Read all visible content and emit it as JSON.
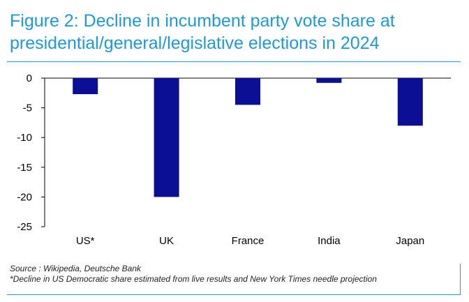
{
  "title": {
    "line1": "Figure 2: Decline in incumbent party vote share at",
    "line2": "presidential/general/legislative elections in 2024"
  },
  "chart_data": {
    "type": "bar",
    "title": "Figure 2: Decline in incumbent party vote share at presidential/general/legislative elections in 2024",
    "categories": [
      "US*",
      "UK",
      "France",
      "India",
      "Japan"
    ],
    "values": [
      -2.7,
      -20.0,
      -4.5,
      -0.8,
      -8.0
    ],
    "xlabel": "",
    "ylabel": "",
    "ylim": [
      -25,
      0
    ],
    "yticks": [
      0,
      -5,
      -10,
      -15,
      -20,
      -25
    ],
    "ytick_labels": [
      "0",
      "-5",
      "-10",
      "-15",
      "-20",
      "-25"
    ],
    "grid": false,
    "bar_color": "#0a0f96",
    "axis_color": "#000000"
  },
  "footer": {
    "source": "Source : Wikipedia, Deutsche Bank",
    "note": "*Decline in US Democratic share estimated from live results and New York Times needle projection"
  },
  "accent_color": "#1f9ad6"
}
